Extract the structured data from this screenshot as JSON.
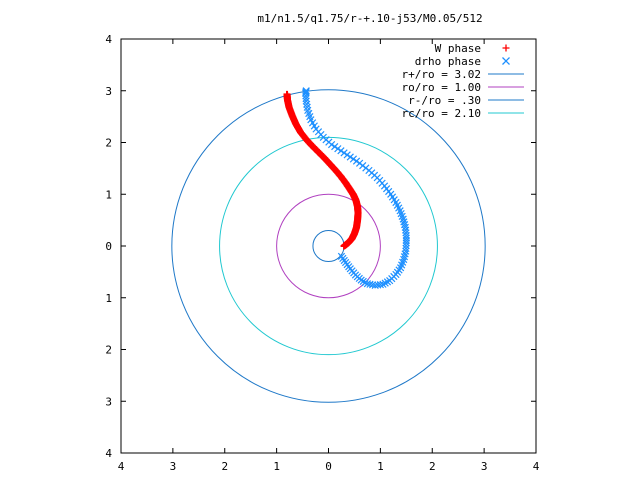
{
  "chart_data": {
    "type": "scatter",
    "title": "m1/n1.5/q1.75/r-+.10-j53/M0.05/512",
    "xlabel": "",
    "ylabel": "",
    "xlim": [
      -4,
      4
    ],
    "ylim": [
      -4,
      4
    ],
    "xticks": [
      -4,
      -3,
      -2,
      -1,
      0,
      1,
      2,
      3,
      4
    ],
    "yticks": [
      -4,
      -3,
      -2,
      -1,
      0,
      1,
      2,
      3,
      4
    ],
    "xtick_labels": [
      "4",
      "3",
      "2",
      "1",
      "0",
      "1",
      "2",
      "3",
      "4"
    ],
    "ytick_labels": [
      "4",
      "3",
      "2",
      "1",
      "0",
      "1",
      "2",
      "3",
      "4"
    ],
    "grid": false,
    "legend_position": "top-right",
    "series": [
      {
        "name": "W phase",
        "kind": "points",
        "marker": "plus",
        "color": "#ff0000",
        "points": [
          [
            0.3,
            0.0
          ],
          [
            0.38,
            0.06
          ],
          [
            0.45,
            0.14
          ],
          [
            0.5,
            0.24
          ],
          [
            0.54,
            0.36
          ],
          [
            0.56,
            0.5
          ],
          [
            0.57,
            0.64
          ],
          [
            0.56,
            0.76
          ],
          [
            0.53,
            0.88
          ],
          [
            0.48,
            0.99
          ],
          [
            0.41,
            1.1
          ],
          [
            0.33,
            1.22
          ],
          [
            0.24,
            1.34
          ],
          [
            0.14,
            1.46
          ],
          [
            0.03,
            1.58
          ],
          [
            -0.08,
            1.7
          ],
          [
            -0.2,
            1.82
          ],
          [
            -0.32,
            1.94
          ],
          [
            -0.43,
            2.06
          ],
          [
            -0.54,
            2.2
          ],
          [
            -0.63,
            2.36
          ],
          [
            -0.7,
            2.52
          ],
          [
            -0.76,
            2.68
          ],
          [
            -0.79,
            2.82
          ],
          [
            -0.8,
            2.93
          ]
        ]
      },
      {
        "name": "drho phase",
        "kind": "points",
        "marker": "cross",
        "color": "#1e90ff",
        "points": [
          [
            0.25,
            -0.2
          ],
          [
            0.33,
            -0.32
          ],
          [
            0.42,
            -0.44
          ],
          [
            0.52,
            -0.56
          ],
          [
            0.63,
            -0.66
          ],
          [
            0.75,
            -0.73
          ],
          [
            0.9,
            -0.76
          ],
          [
            1.05,
            -0.74
          ],
          [
            1.18,
            -0.67
          ],
          [
            1.3,
            -0.55
          ],
          [
            1.39,
            -0.42
          ],
          [
            1.45,
            -0.26
          ],
          [
            1.49,
            -0.1
          ],
          [
            1.5,
            0.06
          ],
          [
            1.5,
            0.2
          ],
          [
            1.48,
            0.36
          ],
          [
            1.44,
            0.52
          ],
          [
            1.38,
            0.68
          ],
          [
            1.3,
            0.84
          ],
          [
            1.2,
            1.0
          ],
          [
            1.08,
            1.16
          ],
          [
            0.94,
            1.32
          ],
          [
            0.78,
            1.46
          ],
          [
            0.6,
            1.6
          ],
          [
            0.42,
            1.72
          ],
          [
            0.24,
            1.84
          ],
          [
            0.06,
            1.96
          ],
          [
            -0.1,
            2.1
          ],
          [
            -0.24,
            2.26
          ],
          [
            -0.34,
            2.44
          ],
          [
            -0.4,
            2.62
          ],
          [
            -0.43,
            2.8
          ],
          [
            -0.44,
            2.95
          ],
          [
            -0.43,
            3.0
          ]
        ]
      },
      {
        "name": "r+/ro = 3.02",
        "kind": "circle",
        "radius": 3.02,
        "color": "#1e78c8"
      },
      {
        "name": "ro/ro = 1.00",
        "kind": "circle",
        "radius": 1.0,
        "color": "#b040c0"
      },
      {
        "name": "r-/ro = .30",
        "kind": "circle",
        "radius": 0.3,
        "color": "#1e78c8"
      },
      {
        "name": "rc/ro = 2.10",
        "kind": "circle",
        "radius": 2.1,
        "color": "#20c8d0"
      }
    ]
  }
}
